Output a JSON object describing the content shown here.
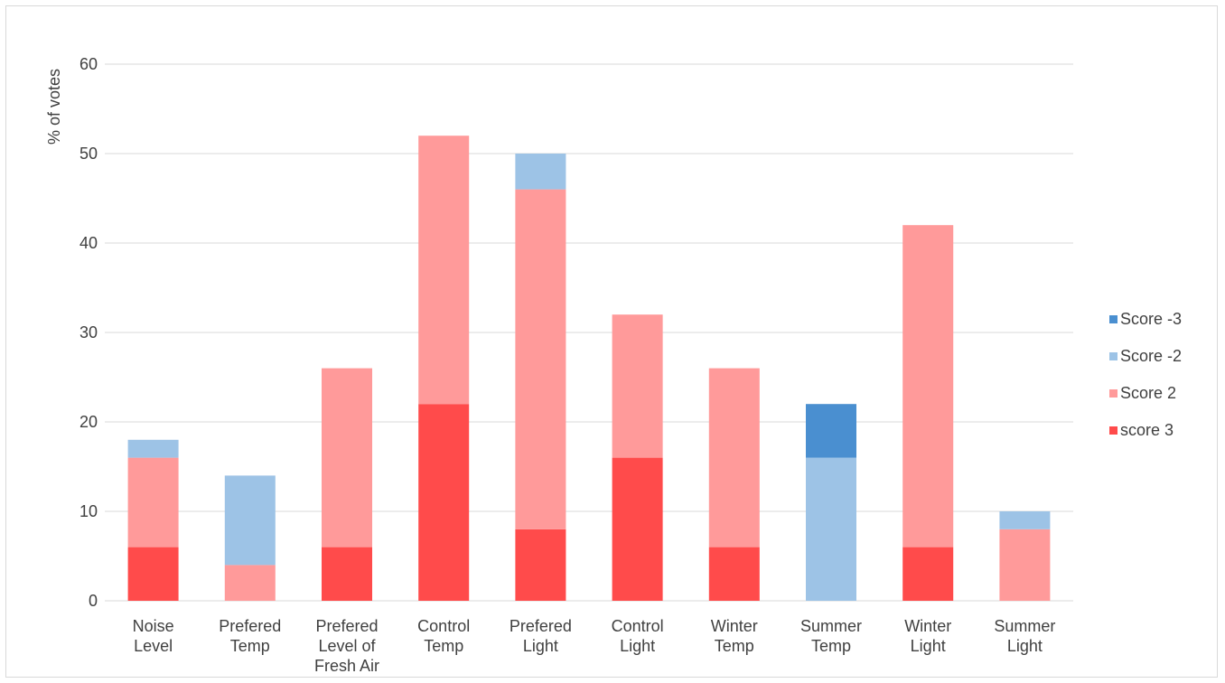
{
  "chart_data": {
    "type": "bar",
    "stacked": true,
    "ylabel": "% of votes",
    "xlabel": "",
    "ylim": [
      0,
      60
    ],
    "yticks": [
      0,
      10,
      20,
      30,
      40,
      50,
      60
    ],
    "grid": true,
    "legend_position": "right",
    "categories": [
      [
        "Noise",
        "Level"
      ],
      [
        "Prefered",
        "Temp"
      ],
      [
        "Prefered",
        "Level of",
        "Fresh Air"
      ],
      [
        "Control",
        "Temp"
      ],
      [
        "Prefered",
        "Light"
      ],
      [
        "Control",
        "Light"
      ],
      [
        "Winter",
        "Temp"
      ],
      [
        "Summer",
        "Temp"
      ],
      [
        "Winter",
        "Light"
      ],
      [
        "Summer",
        "Light"
      ]
    ],
    "series": [
      {
        "name": "score 3",
        "color": "#ff4b4b",
        "values": [
          6,
          0,
          6,
          22,
          8,
          16,
          6,
          0,
          6,
          0
        ]
      },
      {
        "name": "Score 2",
        "color": "#ff9a9a",
        "values": [
          10,
          4,
          20,
          30,
          38,
          16,
          20,
          0,
          36,
          8
        ]
      },
      {
        "name": "Score -2",
        "color": "#9dc3e6",
        "values": [
          2,
          10,
          0,
          0,
          4,
          0,
          0,
          16,
          0,
          2
        ]
      },
      {
        "name": "Score -3",
        "color": "#4a8fd0",
        "values": [
          0,
          0,
          0,
          0,
          0,
          0,
          0,
          6,
          0,
          0
        ]
      }
    ],
    "legend_order": [
      "Score -3",
      "Score -2",
      "Score 2",
      "score 3"
    ]
  }
}
